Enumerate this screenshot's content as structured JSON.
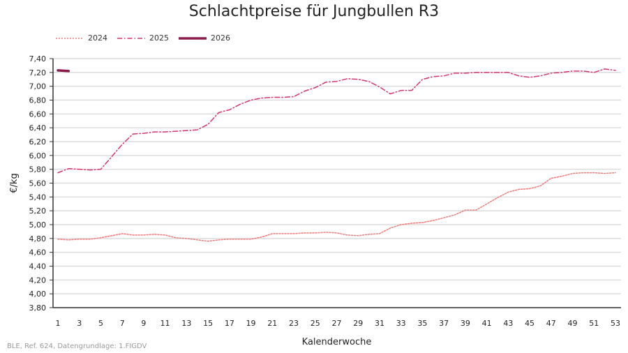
{
  "chart_data": {
    "type": "line",
    "title": "Schlachtpreise für Jungbullen R3",
    "xlabel": "Kalenderwoche",
    "ylabel": "€/kg",
    "xlim": [
      1,
      53
    ],
    "ylim": [
      3.8,
      7.4
    ],
    "xticks": [
      "1",
      "3",
      "5",
      "7",
      "9",
      "11",
      "13",
      "15",
      "17",
      "19",
      "21",
      "23",
      "25",
      "27",
      "29",
      "31",
      "33",
      "35",
      "37",
      "39",
      "41",
      "43",
      "45",
      "47",
      "49",
      "51",
      "53"
    ],
    "yticks": [
      "3,80",
      "4,00",
      "4,20",
      "4,40",
      "4,60",
      "4,80",
      "5,00",
      "5,20",
      "5,40",
      "5,60",
      "5,80",
      "6,00",
      "6,20",
      "6,40",
      "6,60",
      "6,80",
      "7,00",
      "7,20",
      "7,40"
    ],
    "grid": "horizontal",
    "legend_position": "top-left",
    "series": [
      {
        "name": "2024",
        "color": "#f07a7a",
        "style": "dotted",
        "values": [
          4.79,
          4.78,
          4.79,
          4.79,
          4.81,
          4.84,
          4.87,
          4.85,
          4.85,
          4.86,
          4.85,
          4.81,
          4.8,
          4.78,
          4.76,
          4.78,
          4.79,
          4.79,
          4.79,
          4.82,
          4.87,
          4.87,
          4.87,
          4.88,
          4.88,
          4.89,
          4.88,
          4.85,
          4.84,
          4.86,
          4.87,
          4.95,
          5.0,
          5.02,
          5.03,
          5.06,
          5.1,
          5.14,
          5.21,
          5.21,
          5.3,
          5.39,
          5.47,
          5.51,
          5.52,
          5.56,
          5.67,
          5.7,
          5.74,
          5.75,
          5.75,
          5.74,
          5.75
        ]
      },
      {
        "name": "2025",
        "color": "#d6336c",
        "style": "dash-dot",
        "values": [
          5.75,
          5.81,
          5.8,
          5.79,
          5.8,
          5.98,
          6.16,
          6.31,
          6.32,
          6.34,
          6.34,
          6.35,
          6.36,
          6.37,
          6.45,
          6.62,
          6.66,
          6.74,
          6.8,
          6.83,
          6.84,
          6.84,
          6.85,
          6.93,
          6.98,
          7.06,
          7.07,
          7.11,
          7.1,
          7.07,
          6.99,
          6.89,
          6.94,
          6.94,
          7.1,
          7.14,
          7.15,
          7.19,
          7.19,
          7.2,
          7.2,
          7.2,
          7.2,
          7.15,
          7.13,
          7.15,
          7.19,
          7.2,
          7.22,
          7.22,
          7.2,
          7.25,
          7.23
        ]
      },
      {
        "name": "2026",
        "color": "#8b1a4a",
        "style": "solid-thick",
        "values": [
          7.23,
          7.22
        ]
      }
    ]
  },
  "source": "BLE, Ref. 624, Datengrundlage: 1.FIGDV"
}
